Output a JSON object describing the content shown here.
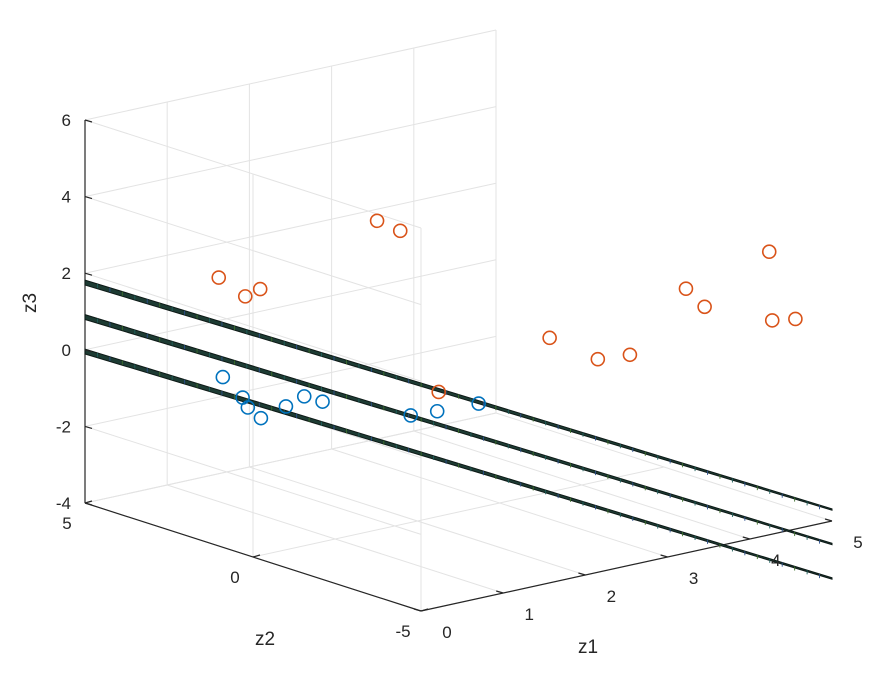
{
  "chart_data": {
    "type": "scatter",
    "title": "",
    "xlabel": "z1",
    "ylabel": "z2",
    "zlabel": "z3",
    "xlim": [
      0,
      5
    ],
    "ylim": [
      -5,
      5
    ],
    "zlim": [
      -4,
      6
    ],
    "x_ticks": [
      "0",
      "1",
      "2",
      "3",
      "4",
      "5"
    ],
    "y_ticks": [
      "-5",
      "0",
      "5"
    ],
    "z_ticks": [
      "-4",
      "-2",
      "0",
      "2",
      "4",
      "6"
    ],
    "grid": true,
    "view": "3d",
    "surfaces": [
      {
        "z_offset": 1.8
      },
      {
        "z_offset": 0.9
      },
      {
        "z_offset": 0.0
      }
    ],
    "series": [
      {
        "color": "#0072bd",
        "marker": "circle-open",
        "points": [
          [
            0.9,
            3.1,
            -0.6
          ],
          [
            1.0,
            2.6,
            -1.3
          ],
          [
            1.1,
            3.0,
            -1.2
          ],
          [
            1.2,
            2.7,
            -1.7
          ],
          [
            1.3,
            2.2,
            -1.3
          ],
          [
            1.4,
            1.9,
            -1.0
          ],
          [
            1.5,
            1.6,
            -1.1
          ],
          [
            2.0,
            0.2,
            -1.3
          ],
          [
            2.2,
            -0.1,
            -1.2
          ],
          [
            2.5,
            -0.6,
            -1.0
          ]
        ]
      },
      {
        "color": "#d95319",
        "marker": "circle-open",
        "points": [
          [
            1.3,
            4.2,
            1.5
          ],
          [
            1.5,
            3.9,
            1.0
          ],
          [
            1.6,
            3.7,
            1.2
          ],
          [
            2.0,
            1.2,
            3.5
          ],
          [
            2.2,
            1.0,
            3.2
          ],
          [
            2.3,
            0.1,
            -0.8
          ],
          [
            3.2,
            -1.0,
            0.5
          ],
          [
            3.5,
            -1.7,
            0.0
          ],
          [
            3.4,
            -2.9,
            0.5
          ],
          [
            4.0,
            -3.1,
            2.0
          ],
          [
            3.9,
            -3.9,
            1.8
          ],
          [
            4.4,
            -4.6,
            3.2
          ],
          [
            4.6,
            -4.2,
            1.2
          ],
          [
            4.8,
            -4.4,
            1.2
          ]
        ]
      }
    ]
  }
}
